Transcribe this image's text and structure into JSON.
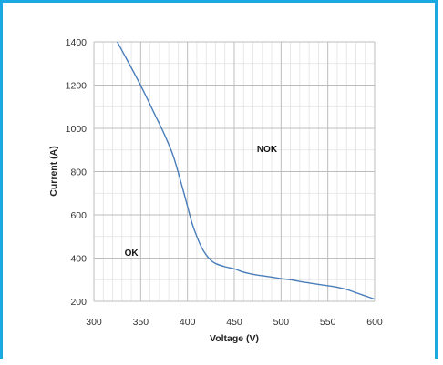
{
  "chart_data": {
    "type": "line",
    "title": "",
    "xlabel": "Voltage (V)",
    "ylabel": "Current (A)",
    "xlim": [
      300,
      600
    ],
    "ylim": [
      200,
      1400
    ],
    "xticks": [
      300,
      350,
      400,
      450,
      500,
      550,
      600
    ],
    "yticks": [
      200,
      400,
      600,
      800,
      1000,
      1200,
      1400
    ],
    "x_minor_step": 10,
    "y_minor_step": 100,
    "grid": true,
    "legend": "none",
    "series": [
      {
        "color": "#4a7ebb",
        "x": [
          325,
          335,
          345,
          355,
          365,
          375,
          385,
          395,
          400,
          405,
          410,
          415,
          420,
          425,
          430,
          440,
          450,
          460,
          470,
          480,
          490,
          500,
          510,
          520,
          530,
          540,
          550,
          560,
          570,
          580,
          590,
          600
        ],
        "y": [
          1400,
          1320,
          1240,
          1155,
          1065,
          975,
          870,
          720,
          640,
          560,
          500,
          450,
          415,
          390,
          375,
          360,
          350,
          335,
          325,
          318,
          312,
          305,
          300,
          292,
          285,
          278,
          272,
          265,
          255,
          240,
          225,
          210
        ]
      }
    ],
    "annotations": [
      {
        "text": "NOK",
        "x": 485,
        "y": 890
      },
      {
        "text": "OK",
        "x": 340,
        "y": 410
      }
    ]
  }
}
